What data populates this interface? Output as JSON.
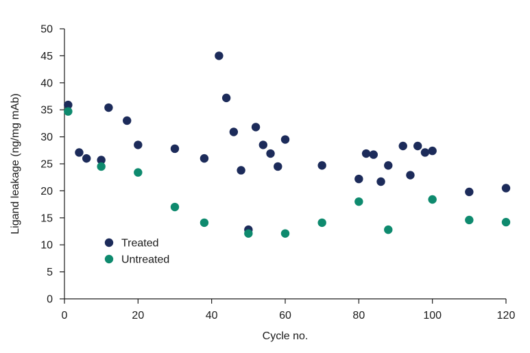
{
  "chart_data": {
    "type": "scatter",
    "title": "",
    "xlabel": "Cycle no.",
    "ylabel": "Ligand leakage (ng/mg mAb)",
    "xlim": [
      0,
      120
    ],
    "ylim": [
      0,
      50
    ],
    "xticks": [
      0,
      20,
      40,
      60,
      80,
      100,
      120
    ],
    "yticks": [
      0,
      5,
      10,
      15,
      20,
      25,
      30,
      35,
      40,
      45,
      50
    ],
    "grid": false,
    "legend_position": "center-left",
    "series": [
      {
        "name": "Treated",
        "color": "#1c2b5a",
        "points": [
          [
            1,
            35.9
          ],
          [
            4,
            27.1
          ],
          [
            6,
            26.0
          ],
          [
            10,
            25.7
          ],
          [
            12,
            35.4
          ],
          [
            17,
            33.0
          ],
          [
            20,
            28.5
          ],
          [
            30,
            27.8
          ],
          [
            38,
            26.0
          ],
          [
            42,
            45.0
          ],
          [
            44,
            37.2
          ],
          [
            46,
            30.9
          ],
          [
            48,
            23.8
          ],
          [
            50,
            12.8
          ],
          [
            52,
            31.8
          ],
          [
            54,
            28.5
          ],
          [
            56,
            26.9
          ],
          [
            58,
            24.5
          ],
          [
            60,
            29.5
          ],
          [
            70,
            24.7
          ],
          [
            80,
            22.2
          ],
          [
            82,
            26.9
          ],
          [
            84,
            26.7
          ],
          [
            86,
            21.7
          ],
          [
            88,
            24.7
          ],
          [
            92,
            28.3
          ],
          [
            94,
            22.9
          ],
          [
            96,
            28.3
          ],
          [
            98,
            27.1
          ],
          [
            100,
            27.4
          ],
          [
            110,
            19.8
          ],
          [
            120,
            20.5
          ]
        ]
      },
      {
        "name": "Untreated",
        "color": "#0e8a6e",
        "points": [
          [
            1,
            34.7
          ],
          [
            10,
            24.5
          ],
          [
            20,
            23.4
          ],
          [
            30,
            17.0
          ],
          [
            38,
            14.1
          ],
          [
            50,
            12.1
          ],
          [
            60,
            12.1
          ],
          [
            70,
            14.1
          ],
          [
            80,
            18.0
          ],
          [
            88,
            12.8
          ],
          [
            100,
            18.4
          ],
          [
            110,
            14.6
          ],
          [
            120,
            14.2
          ]
        ]
      }
    ]
  }
}
